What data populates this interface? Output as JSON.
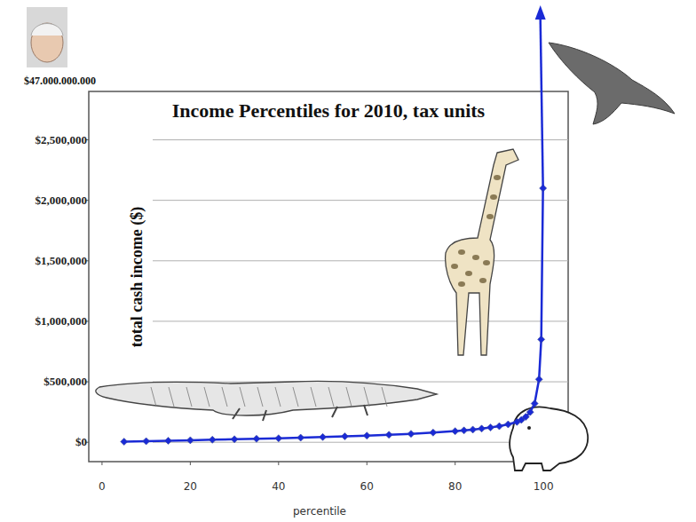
{
  "chart_data": {
    "type": "line",
    "title": "Income Percentiles for 2010, tax units",
    "x_label": "percentile",
    "y_label": "total cash income ($)",
    "annotations": [
      "$47.000.000.000"
    ],
    "x": [
      5,
      10,
      15,
      20,
      25,
      30,
      35,
      40,
      45,
      50,
      55,
      60,
      65,
      70,
      75,
      80,
      82,
      84,
      86,
      88,
      90,
      92,
      94,
      95,
      96,
      97,
      98,
      99,
      99.5,
      99.9
    ],
    "values": [
      5000,
      9000,
      13000,
      17000,
      21000,
      25000,
      29000,
      33000,
      38000,
      43000,
      49000,
      55000,
      62000,
      70000,
      80000,
      92000,
      98000,
      105000,
      113000,
      122000,
      133000,
      148000,
      168000,
      185000,
      210000,
      250000,
      320000,
      520000,
      850000,
      2100000
    ],
    "color": "#1a2ad6",
    "marker": "diamond",
    "line_style": "solid",
    "xlim": [
      -3,
      105.6
    ],
    "xticks": [
      0,
      20,
      40,
      60,
      80,
      100
    ],
    "ylim": [
      -160000,
      2900000
    ],
    "yticks": [
      {
        "value": 0,
        "label": "$0"
      },
      {
        "value": 500000,
        "label": "$500,000"
      },
      {
        "value": 1000000,
        "label": "$1,000,000"
      },
      {
        "value": 1500000,
        "label": "$1,500,000"
      },
      {
        "value": 2000000,
        "label": "$2,000,000"
      },
      {
        "value": 2500000,
        "label": "$2,500,000"
      }
    ],
    "grid": true
  }
}
